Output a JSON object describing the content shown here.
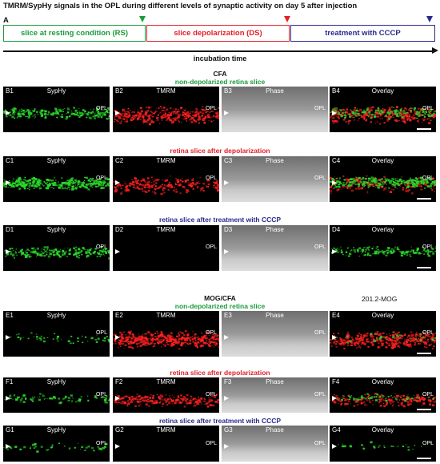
{
  "title": "TMRM/SypHy signals in the OPL during different levels of synaptic activity on day 5 after injection",
  "panel_a_letter": "A",
  "timeline": {
    "phases": [
      {
        "label": "slice at resting condition (RS)",
        "color": "#1a9b3c"
      },
      {
        "label": "slice depolarization (DS)",
        "color": "#e3202a"
      },
      {
        "label": "treatment with CCCP",
        "color": "#2a2a8c"
      }
    ],
    "axis_label": "incubation time"
  },
  "colors": {
    "green": "#2bd92b",
    "red": "#ff2020",
    "green_text": "#1a9b3c",
    "red_text": "#e3202a",
    "blue_text": "#2a2a8c"
  },
  "groups": [
    {
      "name": "CFA",
      "side_label": "",
      "rows": [
        {
          "condition": "non-depolarized retina slice",
          "color": "#1a9b3c",
          "letter": "B",
          "green_level": 0.55,
          "red_level": 0.7
        },
        {
          "condition": "retina slice after depolarization",
          "color": "#e3202a",
          "letter": "C",
          "green_level": 0.95,
          "red_level": 0.45
        },
        {
          "condition": "retina slice after treatment with CCCP",
          "color": "#2a2a8c",
          "letter": "D",
          "green_level": 0.55,
          "red_level": 0.0
        }
      ]
    },
    {
      "name": "MOG/CFA",
      "side_label": "201.2-MOG",
      "rows": [
        {
          "condition": "non-depolarized retina slice",
          "color": "#1a9b3c",
          "letter": "E",
          "green_level": 0.12,
          "red_level": 0.9
        },
        {
          "condition": "retina slice after depolarization",
          "color": "#e3202a",
          "letter": "F",
          "green_level": 0.2,
          "red_level": 0.5
        },
        {
          "condition": "retina slice after treatment with CCCP",
          "color": "#2a2a8c",
          "letter": "G",
          "green_level": 0.1,
          "red_level": 0.0
        }
      ]
    }
  ],
  "column_titles": [
    "SypHy",
    "TMRM",
    "Phase",
    "Overlay"
  ],
  "opl_label": "OPL",
  "labels": {
    "B1": "B1",
    "B2": "B2",
    "B3": "B3",
    "B4": "B4",
    "C1": "C1",
    "C2": "C2",
    "C3": "C3",
    "C4": "C4",
    "D1": "D1",
    "D2": "D2",
    "D3": "D3",
    "D4": "D4",
    "E1": "E1",
    "E2": "E2",
    "E3": "E3",
    "E4": "E4",
    "F1": "F1",
    "F2": "F2",
    "F3": "F3",
    "F4": "F4",
    "G1": "G1",
    "G2": "G2",
    "G3": "G3",
    "G4": "G4"
  }
}
